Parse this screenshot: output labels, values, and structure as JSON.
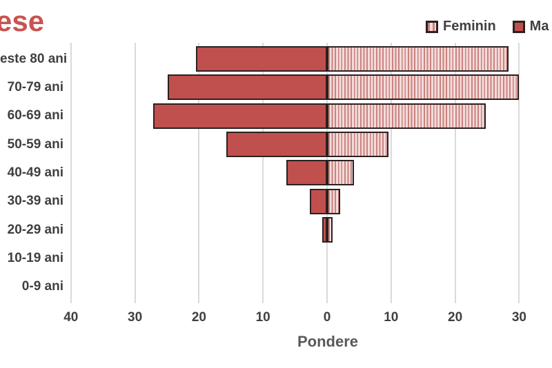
{
  "title": {
    "text": "ese",
    "color": "#c9534f"
  },
  "legend": {
    "items": [
      {
        "name": "feminin",
        "label": "Feminin",
        "swatch": "striped"
      },
      {
        "name": "masculin",
        "label": "Ma",
        "swatch": "solid"
      }
    ]
  },
  "chart_data": {
    "type": "bar",
    "subtype": "population-pyramid",
    "categories": [
      "este 80 ani",
      "70-79 ani",
      "60-69 ani",
      "50-59 ani",
      "40-49 ani",
      "30-39 ani",
      "20-29 ani",
      "10-19 ani",
      "0-9 ani"
    ],
    "series": [
      {
        "name": "Masculin",
        "side": "left",
        "values": [
          20.5,
          24.9,
          27.2,
          15.7,
          6.4,
          2.7,
          0.8,
          0,
          0
        ]
      },
      {
        "name": "Feminin",
        "side": "right",
        "values": [
          28.3,
          29.9,
          24.8,
          9.6,
          4.2,
          2.0,
          0.9,
          0,
          0
        ]
      }
    ],
    "xlabel": "Pondere",
    "x_ticks": [
      {
        "value": -40,
        "label": "40"
      },
      {
        "value": -30,
        "label": "30"
      },
      {
        "value": -20,
        "label": "20"
      },
      {
        "value": -10,
        "label": "10"
      },
      {
        "value": 0,
        "label": "0"
      },
      {
        "value": 10,
        "label": "10"
      },
      {
        "value": 20,
        "label": "20"
      },
      {
        "value": 30,
        "label": "30"
      }
    ],
    "xlim": [
      -40,
      35
    ],
    "grid": true,
    "legend_position": "top-right",
    "colors": {
      "masculin_fill": "#c0504d",
      "feminin_base": "#f2dcdb",
      "feminin_stripe": "#cc817e",
      "bar_border": "#2c2020",
      "gridline": "#dadada",
      "axis_text": "#3f3f3f",
      "axis_title_text": "#595959"
    }
  }
}
